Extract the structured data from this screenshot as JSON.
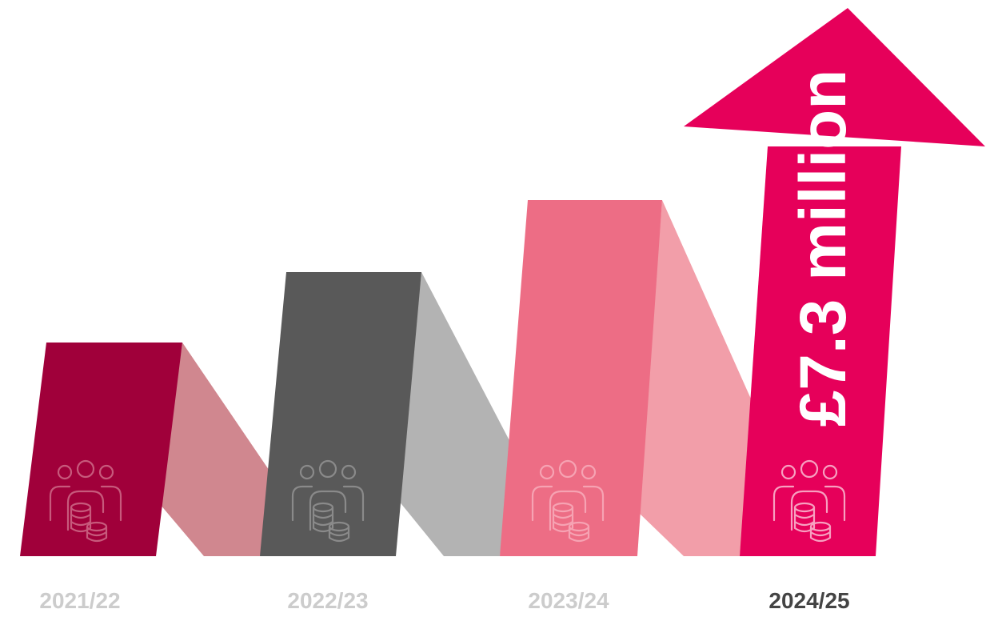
{
  "periods": [
    {
      "label": "2021/22"
    },
    {
      "label": "2022/23"
    },
    {
      "label": "2023/24"
    },
    {
      "label": "2024/25"
    }
  ],
  "highlight": "£7.3 million"
}
